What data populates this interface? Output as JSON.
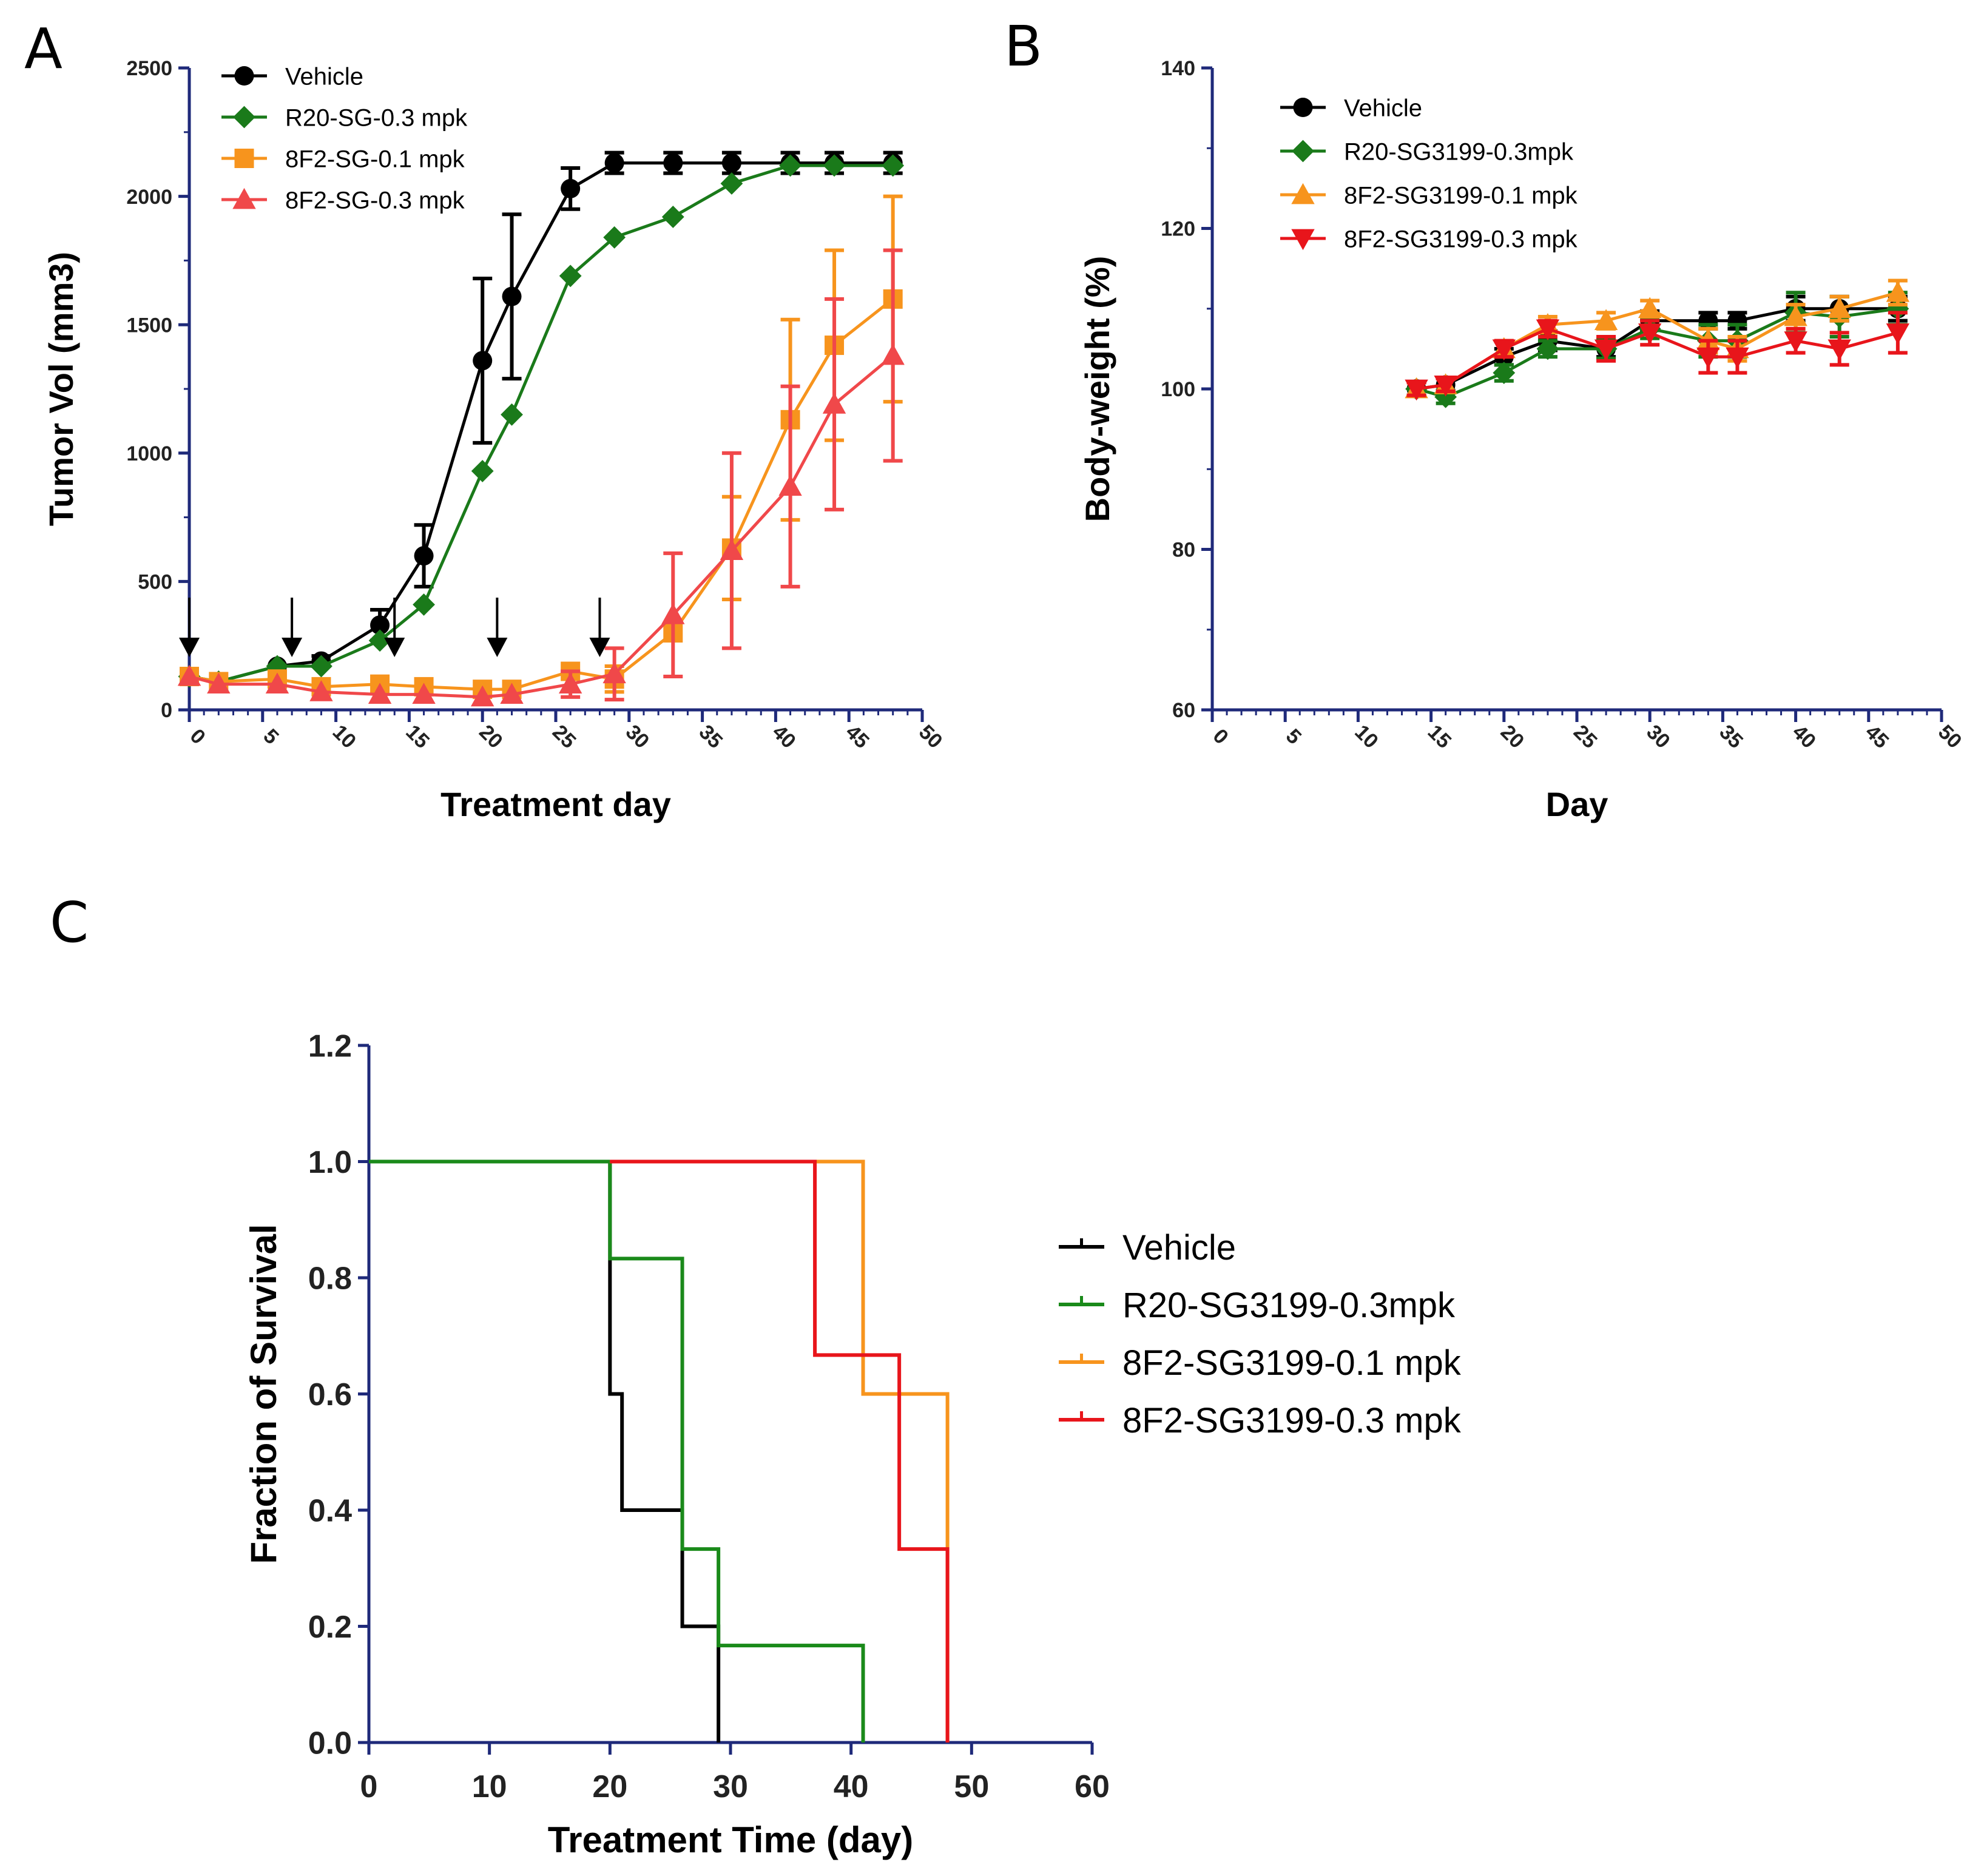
{
  "figure": {
    "panels": [
      {
        "letter": "A"
      },
      {
        "letter": "B"
      },
      {
        "letter": "C"
      }
    ]
  },
  "annotations": {
    "dosing_arrows_day": [
      0,
      7,
      14,
      21,
      28
    ]
  },
  "chart_data": [
    {
      "id": "A",
      "type": "line",
      "title": "",
      "xlabel": "Treatment day",
      "ylabel": "Tumor Vol (mm3)",
      "xlim": [
        0,
        50
      ],
      "ylim": [
        0,
        2500
      ],
      "xticks": [
        0,
        5,
        10,
        15,
        20,
        25,
        30,
        35,
        40,
        45,
        50
      ],
      "yticks": [
        0,
        500,
        1000,
        1500,
        2000,
        2500
      ],
      "xtick_labels": [
        "0",
        "5",
        "10",
        "15",
        "20",
        "25",
        "30",
        "35",
        "40",
        "45",
        "50"
      ],
      "ytick_labels": [
        "0",
        "500",
        "1000",
        "1500",
        "2000",
        "2500"
      ],
      "legend_position": "top-left",
      "series": [
        {
          "name": "Vehicle",
          "color": "#000000",
          "marker": "circle",
          "x": [
            0,
            2,
            6,
            9,
            13,
            16,
            20,
            22,
            26,
            29,
            33,
            37,
            41,
            44,
            48
          ],
          "y": [
            130,
            110,
            170,
            190,
            330,
            600,
            1360,
            1610,
            2030,
            2130,
            2130,
            2130,
            2130,
            2130,
            2130
          ],
          "err": [
            0,
            0,
            0,
            20,
            60,
            120,
            320,
            320,
            80,
            40,
            40,
            40,
            40,
            40,
            40
          ]
        },
        {
          "name": "R20-SG-0.3 mpk",
          "color": "#1a7a1a",
          "marker": "diamond",
          "x": [
            0,
            2,
            6,
            9,
            13,
            16,
            20,
            22,
            26,
            29,
            33,
            37,
            41,
            44,
            48
          ],
          "y": [
            130,
            110,
            170,
            170,
            270,
            410,
            930,
            1150,
            1690,
            1840,
            1920,
            2050,
            2120,
            2120,
            2120
          ],
          "err": [
            0,
            0,
            0,
            0,
            0,
            0,
            0,
            0,
            0,
            0,
            0,
            0,
            0,
            0,
            0
          ]
        },
        {
          "name": "8F2-SG-0.1 mpk",
          "color": "#f7941d",
          "marker": "square",
          "x": [
            0,
            2,
            6,
            9,
            13,
            16,
            20,
            22,
            26,
            29,
            33,
            37,
            41,
            44,
            48
          ],
          "y": [
            130,
            110,
            120,
            90,
            100,
            90,
            80,
            80,
            150,
            120,
            300,
            630,
            1130,
            1420,
            1600
          ],
          "err": [
            0,
            0,
            0,
            0,
            0,
            0,
            0,
            0,
            0,
            50,
            0,
            200,
            390,
            370,
            400
          ]
        },
        {
          "name": "8F2-SG-0.3 mpk",
          "color": "#f0484a",
          "marker": "triangle-up",
          "x": [
            0,
            2,
            6,
            9,
            13,
            16,
            20,
            22,
            26,
            29,
            33,
            37,
            41,
            44,
            48
          ],
          "y": [
            130,
            100,
            100,
            70,
            60,
            60,
            50,
            60,
            100,
            140,
            370,
            620,
            870,
            1190,
            1380
          ],
          "err": [
            0,
            0,
            0,
            0,
            0,
            0,
            0,
            0,
            50,
            100,
            240,
            380,
            390,
            410,
            410
          ]
        }
      ]
    },
    {
      "id": "B",
      "type": "line",
      "title": "",
      "xlabel": "Day",
      "ylabel": "Body-weight (%)",
      "xlim": [
        0,
        50
      ],
      "ylim": [
        60,
        140
      ],
      "xticks": [
        0,
        5,
        10,
        15,
        20,
        25,
        30,
        35,
        40,
        45,
        50
      ],
      "yticks": [
        60,
        80,
        100,
        120,
        140
      ],
      "xtick_labels": [
        "0",
        "5",
        "10",
        "15",
        "20",
        "25",
        "30",
        "35",
        "40",
        "45",
        "50"
      ],
      "ytick_labels": [
        "60",
        "80",
        "100",
        "120",
        "140"
      ],
      "legend_position": "top-left",
      "series": [
        {
          "name": "Vehicle",
          "color": "#000000",
          "marker": "circle",
          "x": [
            14,
            16,
            20,
            23,
            27,
            30,
            34,
            36,
            40,
            43,
            47
          ],
          "y": [
            100,
            100.5,
            104,
            106,
            105,
            108.5,
            108.5,
            108.5,
            110,
            110,
            110
          ],
          "err": [
            0.8,
            0.8,
            1,
            1.2,
            1,
            1.2,
            1,
            1,
            1.5,
            1.5,
            1.5
          ]
        },
        {
          "name": "R20-SG3199-0.3mpk",
          "color": "#1a7a1a",
          "marker": "diamond",
          "x": [
            14,
            16,
            20,
            23,
            27,
            30,
            34,
            36,
            40,
            43,
            47
          ],
          "y": [
            100,
            99,
            102,
            105,
            105,
            107.5,
            106,
            106,
            109.5,
            109,
            110
          ],
          "err": [
            0.8,
            0.8,
            1,
            1,
            1.2,
            1.2,
            2,
            2,
            2.5,
            2.5,
            2
          ]
        },
        {
          "name": "8F2-SG3199-0.1 mpk",
          "color": "#f7941d",
          "marker": "triangle-up",
          "x": [
            14,
            16,
            20,
            23,
            27,
            30,
            34,
            36,
            40,
            43,
            47
          ],
          "y": [
            100,
            100.5,
            105,
            108,
            108.5,
            110,
            106,
            105,
            109,
            110,
            112
          ],
          "err": [
            0.8,
            0.8,
            1,
            1,
            1,
            1,
            1.5,
            1.5,
            1.5,
            1.5,
            1.5
          ]
        },
        {
          "name": "8F2-SG3199-0.3 mpk",
          "color": "#e8151b",
          "marker": "triangle-down",
          "x": [
            14,
            16,
            20,
            23,
            27,
            30,
            34,
            36,
            40,
            43,
            47
          ],
          "y": [
            100,
            100.5,
            105,
            107.5,
            105,
            107,
            104,
            104,
            106,
            105,
            107
          ],
          "err": [
            0.8,
            0.8,
            1,
            1,
            1.5,
            1.5,
            2,
            2,
            1.5,
            2,
            2.5
          ]
        }
      ]
    },
    {
      "id": "C",
      "type": "line",
      "subtype": "kaplan-meier",
      "title": "",
      "xlabel": "Treatment Time (day)",
      "ylabel": "Fraction of Survival",
      "xlim": [
        0,
        60
      ],
      "ylim": [
        0,
        1.2
      ],
      "xticks": [
        0,
        10,
        20,
        30,
        40,
        50,
        60
      ],
      "yticks": [
        0,
        0.2,
        0.4,
        0.6,
        0.8,
        1.0,
        1.2
      ],
      "xtick_labels": [
        "0",
        "10",
        "20",
        "30",
        "40",
        "50",
        "60"
      ],
      "ytick_labels": [
        "0.0",
        "0.2",
        "0.4",
        "0.6",
        "0.8",
        "1.0",
        "1.2"
      ],
      "legend_position": "right",
      "series": [
        {
          "name": "Vehicle",
          "color": "#000000",
          "x": [
            0,
            20,
            20,
            21,
            21,
            26,
            26,
            29,
            29
          ],
          "y": [
            1.0,
            1.0,
            0.6,
            0.6,
            0.4,
            0.4,
            0.2,
            0.2,
            0.0
          ]
        },
        {
          "name": "R20-SG3199-0.3mpk",
          "color": "#1a8a1a",
          "x": [
            0,
            20,
            20,
            26,
            26,
            29,
            29,
            41,
            41
          ],
          "y": [
            1.0,
            1.0,
            0.833,
            0.833,
            0.333,
            0.333,
            0.167,
            0.167,
            0.0
          ]
        },
        {
          "name": "8F2-SG3199-0.1 mpk",
          "color": "#f7941d",
          "x": [
            20,
            41,
            41,
            48,
            48
          ],
          "y": [
            1.0,
            1.0,
            0.6,
            0.6,
            0.0
          ]
        },
        {
          "name": "8F2-SG3199-0.3 mpk",
          "color": "#e8151b",
          "x": [
            20,
            37,
            37,
            44,
            44,
            48,
            48
          ],
          "y": [
            1.0,
            1.0,
            0.667,
            0.667,
            0.333,
            0.333,
            0.0
          ]
        }
      ]
    }
  ]
}
